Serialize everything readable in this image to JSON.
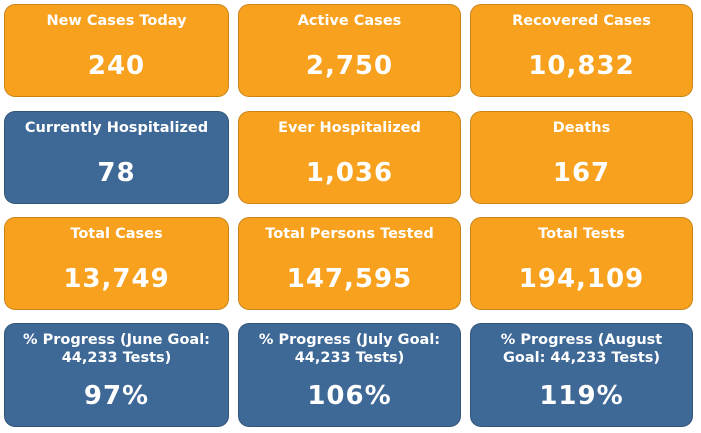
{
  "cards": [
    {
      "label": "New Cases Today",
      "value": "240",
      "color": "#f7a11f"
    },
    {
      "label": "Active Cases",
      "value": "2,750",
      "color": "#f7a11f"
    },
    {
      "label": "Recovered Cases",
      "value": "10,832",
      "color": "#f7a11f"
    },
    {
      "label": "Currently Hospitalized",
      "value": "78",
      "color": "#3e6896"
    },
    {
      "label": "Ever Hospitalized",
      "value": "1,036",
      "color": "#f7a11f"
    },
    {
      "label": "Deaths",
      "value": "167",
      "color": "#f7a11f"
    },
    {
      "label": "Total Cases",
      "value": "13,749",
      "color": "#f7a11f"
    },
    {
      "label": "Total Persons Tested",
      "value": "147,595",
      "color": "#f7a11f"
    },
    {
      "label": "Total Tests",
      "value": "194,109",
      "color": "#f7a11f"
    },
    {
      "label": "% Progress (June Goal: 44,233 Tests)",
      "value": "97%",
      "color": "#3e6896"
    },
    {
      "label": "% Progress (July Goal: 44,233 Tests)",
      "value": "106%",
      "color": "#3e6896"
    },
    {
      "label": "% Progress (August Goal: 44,233 Tests)",
      "value": "119%",
      "color": "#3e6896"
    }
  ]
}
